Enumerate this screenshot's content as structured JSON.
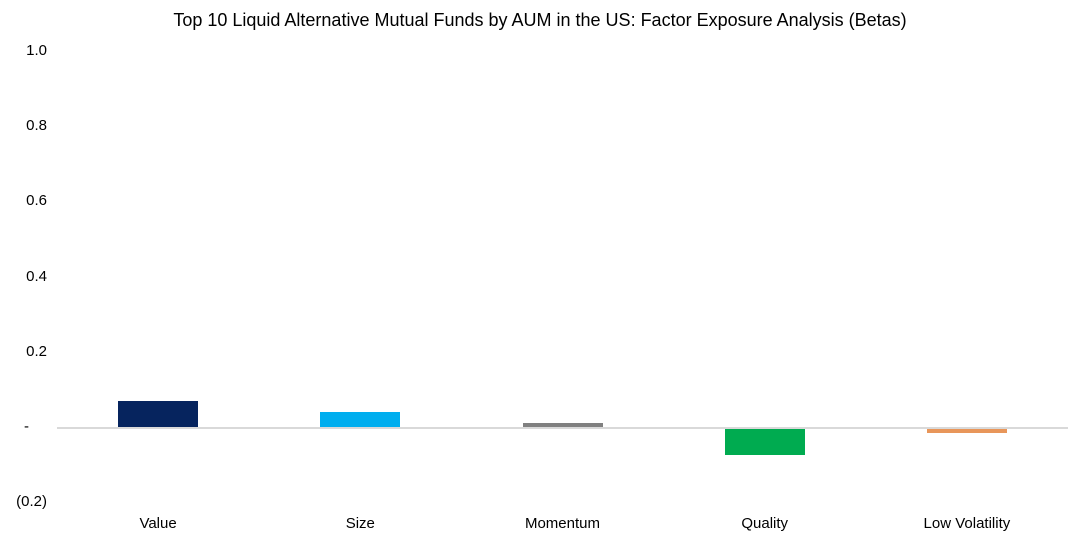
{
  "chart_data": {
    "type": "bar",
    "title": "Top 10 Liquid Alternative Mutual Funds by AUM in the US: Factor Exposure Analysis (Betas)",
    "xlabel": "",
    "ylabel": "",
    "categories": [
      "Value",
      "Size",
      "Momentum",
      "Quality",
      "Low Volatility"
    ],
    "values": [
      0.07,
      0.04,
      0.01,
      -0.07,
      -0.01
    ],
    "bar_colors": [
      "#06245e",
      "#00aeef",
      "#808080",
      "#00ab50",
      "#e8965a"
    ],
    "y_ticks": [
      {
        "value": 1.0,
        "label": "1.0"
      },
      {
        "value": 0.8,
        "label": "0.8"
      },
      {
        "value": 0.6,
        "label": "0.6"
      },
      {
        "value": 0.4,
        "label": "0.4"
      },
      {
        "value": 0.2,
        "label": "0.2"
      },
      {
        "value": 0.0,
        "label": "-"
      },
      {
        "value": -0.2,
        "label": "(0.2)"
      }
    ],
    "ylim": [
      -0.2,
      1.0
    ],
    "grid": false,
    "legend": false,
    "colors": {
      "axis_line": "#d9d9d9",
      "text": "#000000",
      "background": "#ffffff"
    }
  }
}
